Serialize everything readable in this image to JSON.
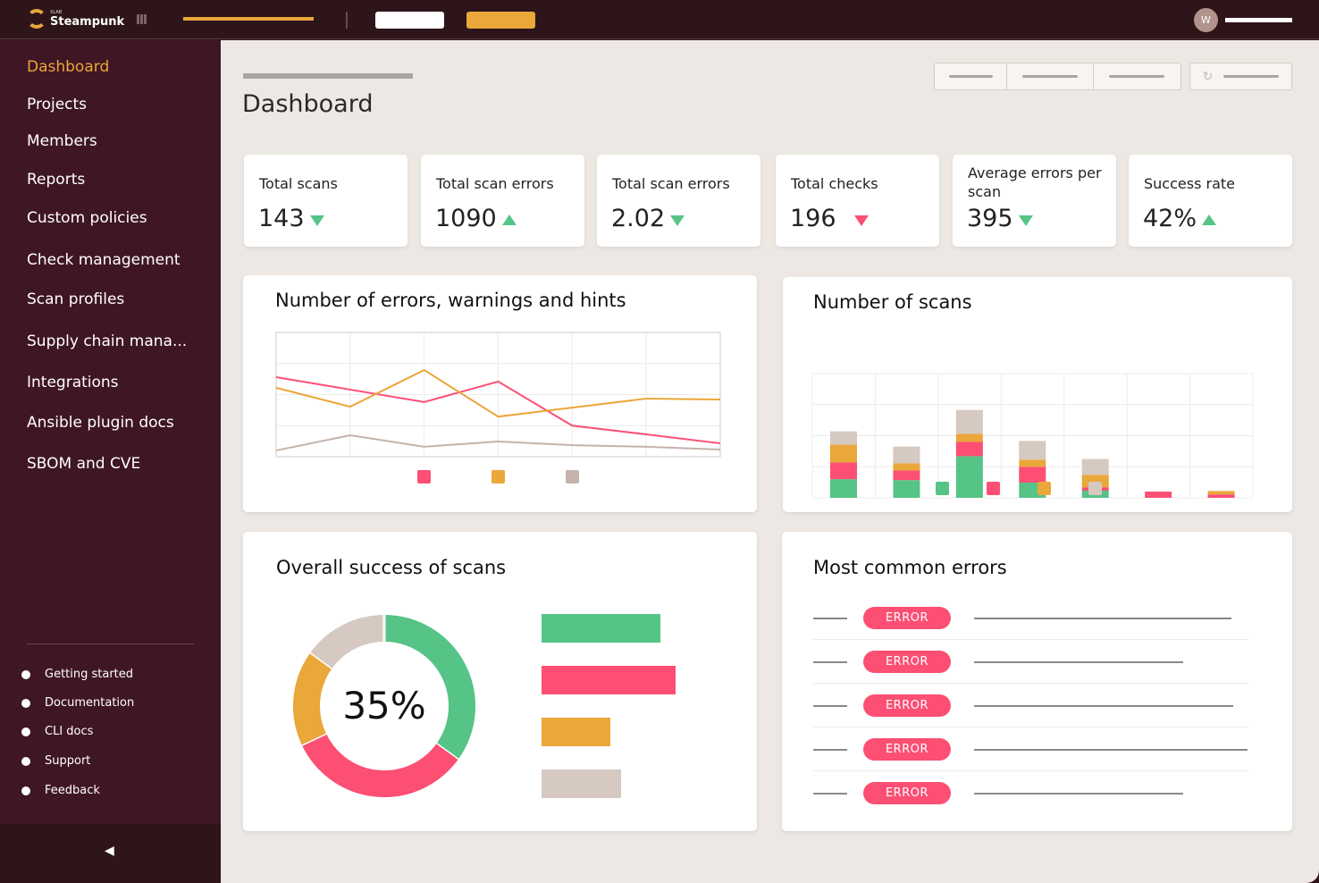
{
  "app": {
    "brand_small": "XLAB",
    "brand": "Steampunk",
    "user_initial": "W"
  },
  "colors": {
    "topbar": "#2e1519",
    "sidebar": "#3f1624",
    "accent": "#eaa73a",
    "error": "#fc4f73",
    "success": "#55c486",
    "neutral": "#d6c9c1"
  },
  "sidebar": {
    "items": [
      {
        "label": "Dashboard",
        "active": true
      },
      {
        "label": "Projects"
      },
      {
        "label": "Members"
      },
      {
        "label": "Reports"
      },
      {
        "label": "Custom policies"
      },
      {
        "label": "Check management"
      },
      {
        "label": "Scan profiles"
      },
      {
        "label": "Supply chain mana..."
      },
      {
        "label": "Integrations"
      },
      {
        "label": "Ansible plugin docs"
      },
      {
        "label": "SBOM and CVE"
      }
    ],
    "links": [
      {
        "label": "Getting started"
      },
      {
        "label": "Documentation"
      },
      {
        "label": "CLI docs"
      },
      {
        "label": "Support"
      },
      {
        "label": "Feedback"
      }
    ],
    "collapse_icon": "collapse-left-icon"
  },
  "page": {
    "title": "Dashboard",
    "refresh_icon": "refresh-icon"
  },
  "kpis": [
    {
      "label": "Total scans",
      "value": "143",
      "trend": "down"
    },
    {
      "label": "Total scan errors",
      "value": "1090",
      "trend": "up"
    },
    {
      "label": "Total scan errors",
      "value": "2.02",
      "trend": "down"
    },
    {
      "label": "Total checks",
      "value": "196",
      "trend": "down-red"
    },
    {
      "label": "Average errors per scan",
      "value": "395",
      "trend": "down"
    },
    {
      "label": "Success rate",
      "value": "42%",
      "trend": "up"
    }
  ],
  "chart_data": [
    {
      "type": "line",
      "title": "Number of errors, warnings and hints",
      "grid": true,
      "legend": "bottom",
      "ylim": [
        0,
        4
      ],
      "x": [
        0,
        1,
        2,
        3,
        4,
        5,
        6
      ],
      "series": [
        {
          "color": "#fc4f73",
          "values": [
            2.56,
            2.16,
            1.76,
            2.42,
            1.0,
            0.72,
            0.43
          ]
        },
        {
          "color": "#eaa73a",
          "values": [
            2.22,
            1.61,
            2.79,
            1.29,
            1.58,
            1.87,
            1.84
          ]
        },
        {
          "color": "#c4b3ab",
          "values": [
            0.2,
            0.69,
            0.32,
            0.49,
            0.37,
            0.32,
            0.23
          ]
        }
      ]
    },
    {
      "type": "bar",
      "stacked": true,
      "title": "Number of scans",
      "grid": true,
      "legend": "bottom",
      "ylim": [
        0,
        40
      ],
      "categories": [
        1,
        2,
        3,
        4,
        5,
        6,
        7
      ],
      "series": [
        {
          "color": "#55c486",
          "values": [
            6,
            5.7,
            13.4,
            4.9,
            2.3,
            0,
            0
          ]
        },
        {
          "color": "#fc4f73",
          "values": [
            5.4,
            3.1,
            4.6,
            5.1,
            1.1,
            2,
            1.1
          ]
        },
        {
          "color": "#eaa73a",
          "values": [
            5.7,
            2.3,
            2.6,
            2.3,
            4,
            0,
            1.1
          ]
        },
        {
          "color": "#d6c9c1",
          "values": [
            4.3,
            5.4,
            7.7,
            6,
            5.1,
            0,
            0
          ]
        }
      ]
    },
    {
      "type": "pie",
      "donut": true,
      "title": "Overall success of scans",
      "center_label": "35%",
      "slices": [
        {
          "color": "#55c486",
          "value": 35
        },
        {
          "color": "#fc4f73",
          "value": 33
        },
        {
          "color": "#eaa73a",
          "value": 17
        },
        {
          "color": "#d6c9c1",
          "value": 15
        }
      ],
      "bars": [
        {
          "color": "#55c486",
          "value": 133
        },
        {
          "color": "#fc4f73",
          "value": 150
        },
        {
          "color": "#eaa73a",
          "value": 77
        },
        {
          "color": "#d6c9c1",
          "value": 89
        }
      ]
    }
  ],
  "errors": {
    "title": "Most common errors",
    "rows": [
      {
        "badge": "ERROR"
      },
      {
        "badge": "ERROR"
      },
      {
        "badge": "ERROR"
      },
      {
        "badge": "ERROR"
      },
      {
        "badge": "ERROR"
      }
    ]
  }
}
